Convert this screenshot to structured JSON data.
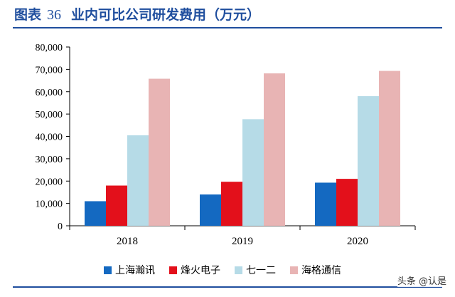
{
  "header": {
    "figure_label": "图表",
    "figure_number": "36",
    "title_text": "业内可比公司研发费用（万元）"
  },
  "watermark": "头条 @认是",
  "colors": {
    "brand": "#1f4e9e",
    "series": [
      "#1469c1",
      "#e3101b",
      "#b6dbe7",
      "#e8b4b4"
    ]
  },
  "chart_data": {
    "type": "bar",
    "categories": [
      "2018",
      "2019",
      "2020"
    ],
    "series": [
      {
        "name": "上海瀚讯",
        "values": [
          11000,
          14000,
          19300
        ]
      },
      {
        "name": "烽火电子",
        "values": [
          18000,
          19700,
          21000
        ]
      },
      {
        "name": "七一二",
        "values": [
          40500,
          47700,
          58000
        ]
      },
      {
        "name": "海格通信",
        "values": [
          65800,
          68200,
          69300
        ]
      }
    ],
    "ylim": [
      0,
      80000
    ],
    "yticks": [
      "0",
      "10,000",
      "20,000",
      "30,000",
      "40,000",
      "50,000",
      "60,000",
      "70,000",
      "80,000"
    ],
    "legend": "bottom",
    "grid": false
  }
}
